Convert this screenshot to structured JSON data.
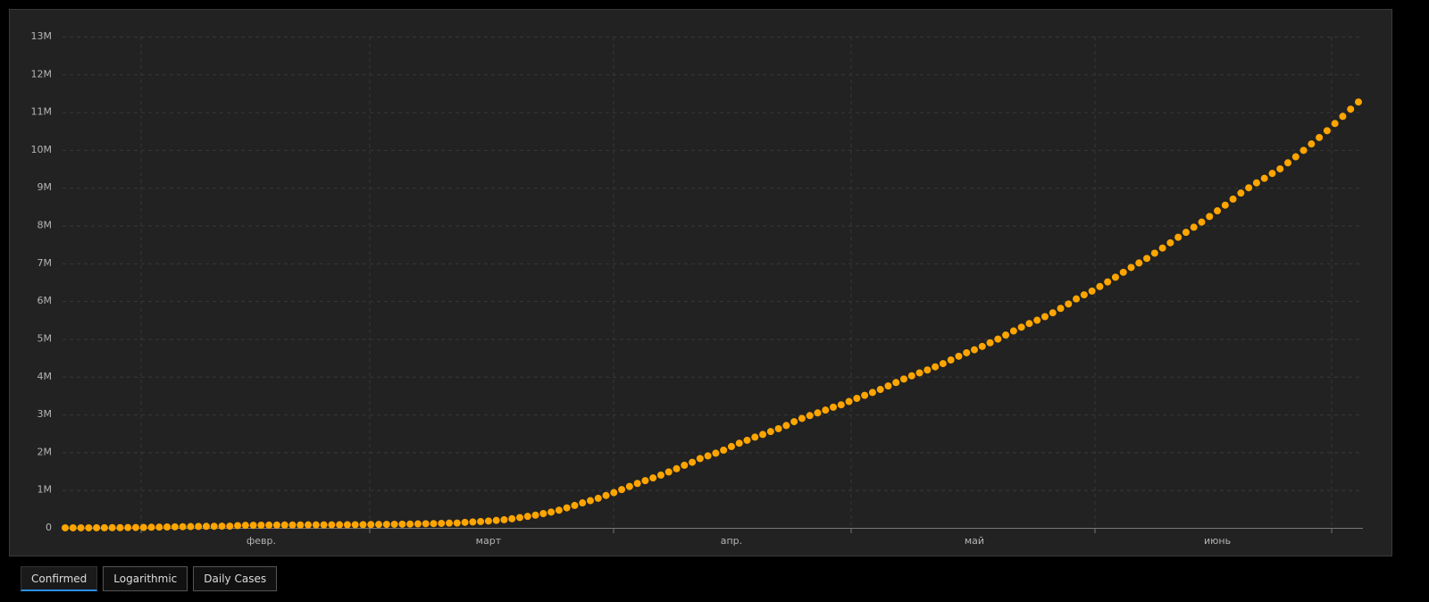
{
  "chart_data": {
    "type": "scatter",
    "color": "#ffa500",
    "grid": true,
    "ylim": [
      0,
      13000000
    ],
    "yticks": [
      0,
      {
        "value": 1000000,
        "label": "1M"
      },
      {
        "value": 2000000,
        "label": "2M"
      },
      {
        "value": 3000000,
        "label": "3M"
      },
      {
        "value": 4000000,
        "label": "4M"
      },
      {
        "value": 5000000,
        "label": "5M"
      },
      {
        "value": 6000000,
        "label": "6M"
      },
      {
        "value": 7000000,
        "label": "7M"
      },
      {
        "value": 8000000,
        "label": "8M"
      },
      {
        "value": 9000000,
        "label": "9M"
      },
      {
        "value": 10000000,
        "label": "10M"
      },
      {
        "value": 11000000,
        "label": "11M"
      },
      {
        "value": 12000000,
        "label": "12M"
      },
      {
        "value": 13000000,
        "label": "13M"
      }
    ],
    "categories": [
      null,
      null,
      null,
      null,
      null,
      null,
      null,
      null,
      null,
      null,
      null,
      null,
      null,
      null,
      null,
      null,
      null,
      null,
      null,
      null,
      null,
      null,
      null,
      null,
      null,
      "февр.",
      null,
      null,
      null,
      null,
      null,
      null,
      null,
      null,
      null,
      null,
      null,
      null,
      null,
      null,
      null,
      null,
      null,
      null,
      null,
      null,
      null,
      null,
      null,
      null,
      null,
      null,
      null,
      null,
      "март",
      null,
      null,
      null,
      null,
      null,
      null,
      null,
      null,
      null,
      null,
      null,
      null,
      null,
      null,
      null,
      null,
      null,
      null,
      null,
      null,
      null,
      null,
      null,
      null,
      null,
      null,
      null,
      null,
      null,
      null,
      "апр.",
      null,
      null,
      null,
      null,
      null,
      null,
      null,
      null,
      null,
      null,
      null,
      null,
      null,
      null,
      null,
      null,
      null,
      null,
      null,
      null,
      null,
      null,
      null,
      null,
      null,
      null,
      null,
      null,
      null,
      null,
      "май",
      null,
      null,
      null,
      null,
      null,
      null,
      null,
      null,
      null,
      null,
      null,
      null,
      null,
      null,
      null,
      null,
      null,
      null,
      null,
      null,
      null,
      null,
      null,
      null,
      null,
      null,
      null,
      null,
      null,
      null,
      "июнь",
      null,
      null,
      null,
      null,
      null,
      null,
      null,
      null,
      null,
      null,
      null,
      null,
      null,
      null,
      null,
      null,
      null,
      null
    ],
    "values": [
      555,
      653,
      941,
      1434,
      2118,
      2927,
      5578,
      6166,
      8234,
      9927,
      12038,
      16787,
      19881,
      23892,
      27635,
      30794,
      34391,
      37120,
      40150,
      42762,
      44802,
      45221,
      60368,
      66885,
      69030,
      71224,
      73258,
      75136,
      75639,
      76197,
      76819,
      78572,
      78958,
      79561,
      80406,
      81388,
      82746,
      84112,
      86011,
      88369,
      90306,
      92840,
      95120,
      97886,
      101801,
      105847,
      109821,
      113590,
      118620,
      125875,
      128352,
      145205,
      156101,
      167454,
      181574,
      197102,
      214821,
      242570,
      272208,
      304507,
      336953,
      378235,
      418045,
      467653,
      529591,
      593291,
      660693,
      720140,
      782389,
      857487,
      932605,
      1013466,
      1095917,
      1176060,
      1249754,
      1321481,
      1396476,
      1480202,
      1565278,
      1657526,
      1735650,
      1834721,
      1904838,
      1976191,
      2056054,
      2152437,
      2240190,
      2317758,
      2401378,
      2472259,
      2549123,
      2624116,
      2708403,
      2811193,
      2896746,
      2971475,
      3041764,
      3116398,
      3193886,
      3256846,
      3343777,
      3427343,
      3506729,
      3583055,
      3662691,
      3755341,
      3845718,
      3938064,
      4024009,
      4101699,
      4177502,
      4261747,
      4347018,
      4442163,
      4542347,
      4634068,
      4713620,
      4801943,
      4897492,
      4996472,
      5102424,
      5210817,
      5310362,
      5407613,
      5495061,
      5589626,
      5691790,
      5808946,
      5924275,
      6059017,
      6166946,
      6265852,
      6386563,
      6508635,
      6632985,
      6764402,
      6891207,
      7010574,
      7130541,
      7269150,
      7405310,
      7543400,
      7690708,
      7820450,
      7955150,
      8091330,
      8240000,
      8390000,
      8540000,
      8700000,
      8860000,
      9000000,
      9130000,
      9250000,
      9380000,
      9500000,
      9660000,
      9820000,
      9990000,
      10160000,
      10330000,
      10510000,
      10700000,
      10890000,
      11080000,
      11270000
    ]
  },
  "tabs": [
    "Confirmed",
    "Logarithmic",
    "Daily Cases"
  ]
}
